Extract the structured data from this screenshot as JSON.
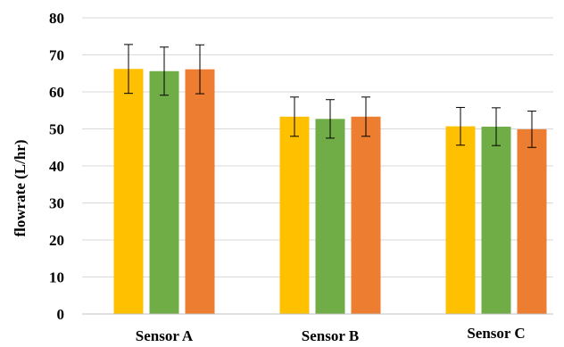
{
  "chart_data": {
    "type": "bar",
    "title": "",
    "xlabel": "",
    "ylabel": "flowrate (L/hr)",
    "ylim": [
      0,
      80
    ],
    "yticks": [
      0,
      10,
      20,
      30,
      40,
      50,
      60,
      70,
      80
    ],
    "grid": true,
    "legend": "none",
    "categories": [
      "Sensor A",
      "Sensor B",
      "Sensor C"
    ],
    "series": [
      {
        "color": "#FFC000",
        "values": [
          66.2,
          53.3,
          50.7
        ],
        "error": [
          6.6,
          5.3,
          5.1
        ]
      },
      {
        "color": "#70AD47",
        "values": [
          65.6,
          52.7,
          50.6
        ],
        "error": [
          6.5,
          5.2,
          5.1
        ]
      },
      {
        "color": "#ED7D31",
        "values": [
          66.1,
          53.3,
          49.9
        ],
        "error": [
          6.6,
          5.3,
          4.9
        ]
      }
    ],
    "colors": {
      "gridline": "#D9D9D9",
      "axis": "#BFBFBF",
      "error_bar": "#000000"
    }
  }
}
